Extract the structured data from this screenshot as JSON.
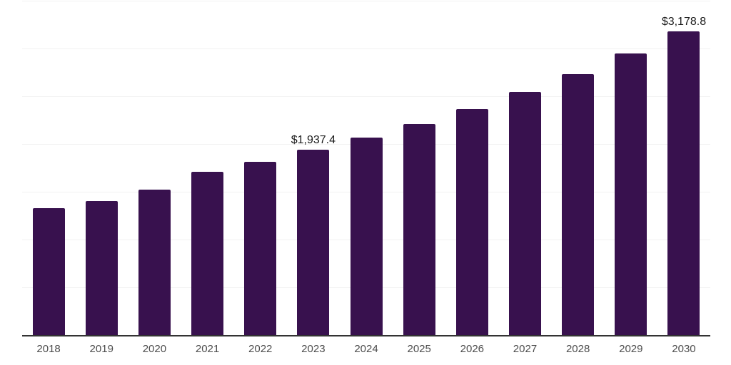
{
  "page": {
    "background_color": "#ffffff"
  },
  "chart_data": {
    "type": "bar",
    "title": "",
    "xlabel": "",
    "ylabel": "",
    "categories": [
      "2018",
      "2019",
      "2020",
      "2021",
      "2022",
      "2023",
      "2024",
      "2025",
      "2026",
      "2027",
      "2028",
      "2029",
      "2030"
    ],
    "values": [
      1328,
      1403,
      1522,
      1709,
      1814,
      1937.4,
      2068,
      2209,
      2366,
      2545,
      2731,
      2948,
      3178.8
    ],
    "bar_labels": [
      "",
      "",
      "",
      "",
      "",
      "$1,937.4",
      "",
      "",
      "",
      "",
      "",
      "",
      "$3,178.8"
    ],
    "ylim": [
      0,
      3500
    ],
    "gridline_step": 500,
    "grid": "horizontal",
    "legend": "none",
    "y_axis_tick_labels_visible": false,
    "bar_color": "#38114E",
    "gridline_color": "#f2f2f2",
    "axis_line_color": "#333333",
    "tick_label_color": "#4d4d4d",
    "data_label_color": "#1a1a1a",
    "currency_prefix": "$"
  }
}
